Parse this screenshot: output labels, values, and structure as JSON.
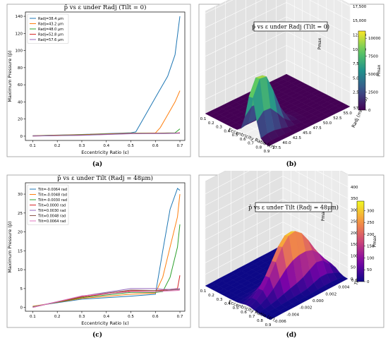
{
  "panels": {
    "a": {
      "caption": "(a)"
    },
    "b": {
      "caption": "(b)"
    },
    "c": {
      "caption": "(c)"
    },
    "d": {
      "caption": "(d)"
    }
  },
  "chart_data": [
    {
      "type": "line",
      "title": "p̄ vs ε under Radj (Tilt = 0)",
      "xlabel": "Eccentricity Ratio (ε)",
      "ylabel": "Maximum Pressure (p̄)",
      "xlim": [
        0.07,
        0.72
      ],
      "ylim": [
        -5,
        145
      ],
      "xticks": [
        "0.1",
        "0.2",
        "0.3",
        "0.4",
        "0.5",
        "0.6",
        "0.7"
      ],
      "yticks": [
        "0",
        "20",
        "40",
        "60",
        "80",
        "100",
        "120",
        "140"
      ],
      "grid": false,
      "legend": "top-left",
      "x": [
        0.1,
        0.3,
        0.5,
        0.52,
        0.55,
        0.6,
        0.62,
        0.65,
        0.68,
        0.7
      ],
      "series": [
        {
          "name": "Radj=38.4 μm",
          "color": "#1f77b4",
          "values": [
            0.5,
            2.0,
            4.0,
            5.0,
            20,
            45,
            55,
            70,
            95,
            140
          ]
        },
        {
          "name": "Radj=43.2 μm",
          "color": "#ff7f0e",
          "values": [
            0.4,
            1.8,
            3.5,
            3.5,
            3.6,
            3.7,
            10,
            25,
            40,
            53
          ]
        },
        {
          "name": "Radj=48.0 μm",
          "color": "#2ca02c",
          "values": [
            0.3,
            1.5,
            3.2,
            3.3,
            3.4,
            3.5,
            3.6,
            3.7,
            3.8,
            8.5
          ]
        },
        {
          "name": "Radj=52.8 μm",
          "color": "#d62728",
          "values": [
            0.2,
            1.2,
            3.0,
            3.1,
            3.2,
            3.3,
            3.3,
            3.4,
            3.5,
            4
          ]
        },
        {
          "name": "Radj=57.6 μm",
          "color": "#9467bd",
          "values": [
            0.1,
            1.0,
            2.8,
            2.9,
            3.0,
            3.1,
            3.1,
            3.2,
            3.3,
            3.5
          ]
        }
      ]
    },
    {
      "type": "surface",
      "title": "p̄ vs ε under Radj (Tilt = 0)",
      "xlabel": "Eccentricity Ratio (εr)",
      "ylabel": "Radj (microns)",
      "zlabel": "Pmax",
      "xticks": [
        "0.1",
        "0.2",
        "0.3",
        "0.4",
        "0.5",
        "0.6",
        "0.7",
        "0.8",
        "0.9"
      ],
      "yticks": [
        "37.5",
        "40.0",
        "42.5",
        "45.0",
        "47.5",
        "50.0",
        "52.5",
        "55.0",
        "57.5"
      ],
      "zticks": [
        "2,500",
        "5,000",
        "7,500",
        "10,000",
        "12,500",
        "15,000",
        "17,500"
      ],
      "colorbar": {
        "label": "Pmax",
        "ticks": [
          "0",
          "2500",
          "5000",
          "7500",
          "10000"
        ],
        "range": [
          0,
          11000
        ],
        "colormap": "viridis"
      }
    },
    {
      "type": "line",
      "title": "p̄ vs ε under Tilt (Radj = 48μm)",
      "xlabel": "Eccentricity Ratio (ε)",
      "ylabel": "Maximum Pressure (p̄)",
      "xlim": [
        0.07,
        0.72
      ],
      "ylim": [
        -1,
        33
      ],
      "xticks": [
        "0.1",
        "0.2",
        "0.3",
        "0.4",
        "0.5",
        "0.6",
        "0.7"
      ],
      "yticks": [
        "0",
        "5",
        "10",
        "15",
        "20",
        "25",
        "30"
      ],
      "grid": false,
      "legend": "top-left",
      "x": [
        0.1,
        0.3,
        0.5,
        0.6,
        0.63,
        0.66,
        0.69,
        0.7
      ],
      "series": [
        {
          "name": "Tilt=-0.0064 rad",
          "color": "#1f77b4",
          "values": [
            0.3,
            2.2,
            3.0,
            3.5,
            15,
            26,
            31.5,
            31
          ]
        },
        {
          "name": "Tilt=-0.0048 rad",
          "color": "#ff7f0e",
          "values": [
            0.3,
            2.4,
            3.5,
            3.8,
            8,
            16,
            24,
            30
          ]
        },
        {
          "name": "Tilt=-0.0030 rad",
          "color": "#2ca02c",
          "values": [
            0.2,
            2.6,
            4.0,
            4.0,
            4.2,
            8,
            16,
            22
          ]
        },
        {
          "name": "Tilt=0.0000 rad",
          "color": "#d62728",
          "values": [
            0.1,
            2.8,
            4.4,
            4.5,
            4.6,
            4.8,
            5,
            8.5
          ]
        },
        {
          "name": "Tilt=0.0030 rad",
          "color": "#9467bd",
          "values": [
            0.1,
            3.0,
            5.0,
            5.0,
            4.8,
            4.8,
            4.9,
            5
          ]
        },
        {
          "name": "Tilt=0.0048 rad",
          "color": "#8c564b",
          "values": [
            0.0,
            3.0,
            4.6,
            4.5,
            4.4,
            4.6,
            4.7,
            4.8
          ]
        },
        {
          "name": "Tilt=0.0064 rad",
          "color": "#e377c2",
          "values": [
            0.0,
            3.1,
            4.2,
            4.2,
            4.3,
            4.4,
            4.5,
            4.6
          ]
        }
      ]
    },
    {
      "type": "surface",
      "title": "p̄ vs ε under Tilt (Radj = 48μm)",
      "xlabel": "Eccentricity Ratio (εr)",
      "ylabel": "Tilt",
      "zlabel": "Pmax",
      "xticks": [
        "0.1",
        "0.2",
        "0.3",
        "0.4",
        "0.5",
        "0.6",
        "0.7",
        "0.8",
        "0.9"
      ],
      "yticks": [
        "-0.006",
        "-0.004",
        "-0.002",
        "0.000",
        "0.002",
        "0.004",
        "0.006"
      ],
      "zticks": [
        "0",
        "50",
        "100",
        "150",
        "200",
        "250",
        "300",
        "350",
        "400"
      ],
      "colorbar": {
        "label": "Pmax",
        "ticks": [
          "0",
          "50",
          "100",
          "150",
          "200",
          "250",
          "300"
        ],
        "range": [
          0,
          340
        ],
        "colormap": "plasma"
      }
    }
  ]
}
